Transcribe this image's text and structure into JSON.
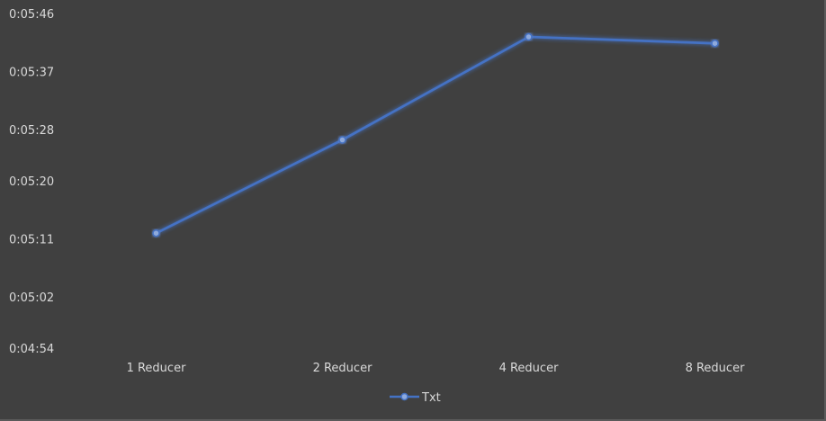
{
  "chart_data": {
    "type": "line",
    "title": "",
    "xlabel": "",
    "ylabel": "",
    "categories": [
      "1 Reducer",
      "2 Reducer",
      "4 Reducer",
      "8 Reducer"
    ],
    "y_tick_labels": [
      "0:05:46",
      "0:05:37",
      "0:05:28",
      "0:05:20",
      "0:05:11",
      "0:05:02",
      "0:04:54"
    ],
    "y_tick_seconds": [
      346,
      337,
      328,
      320,
      311,
      302,
      294
    ],
    "ylim_seconds": [
      294,
      346
    ],
    "series": [
      {
        "name": "Txt",
        "values": [
          "0:05:12",
          "0:05:27",
          "0:05:43",
          "0:05:42"
        ],
        "values_seconds": [
          312,
          326.5,
          342.5,
          341.5
        ],
        "color": "#4472c4",
        "marker": "circle"
      }
    ],
    "grid": false,
    "legend_position": "bottom",
    "background": "#404040"
  }
}
